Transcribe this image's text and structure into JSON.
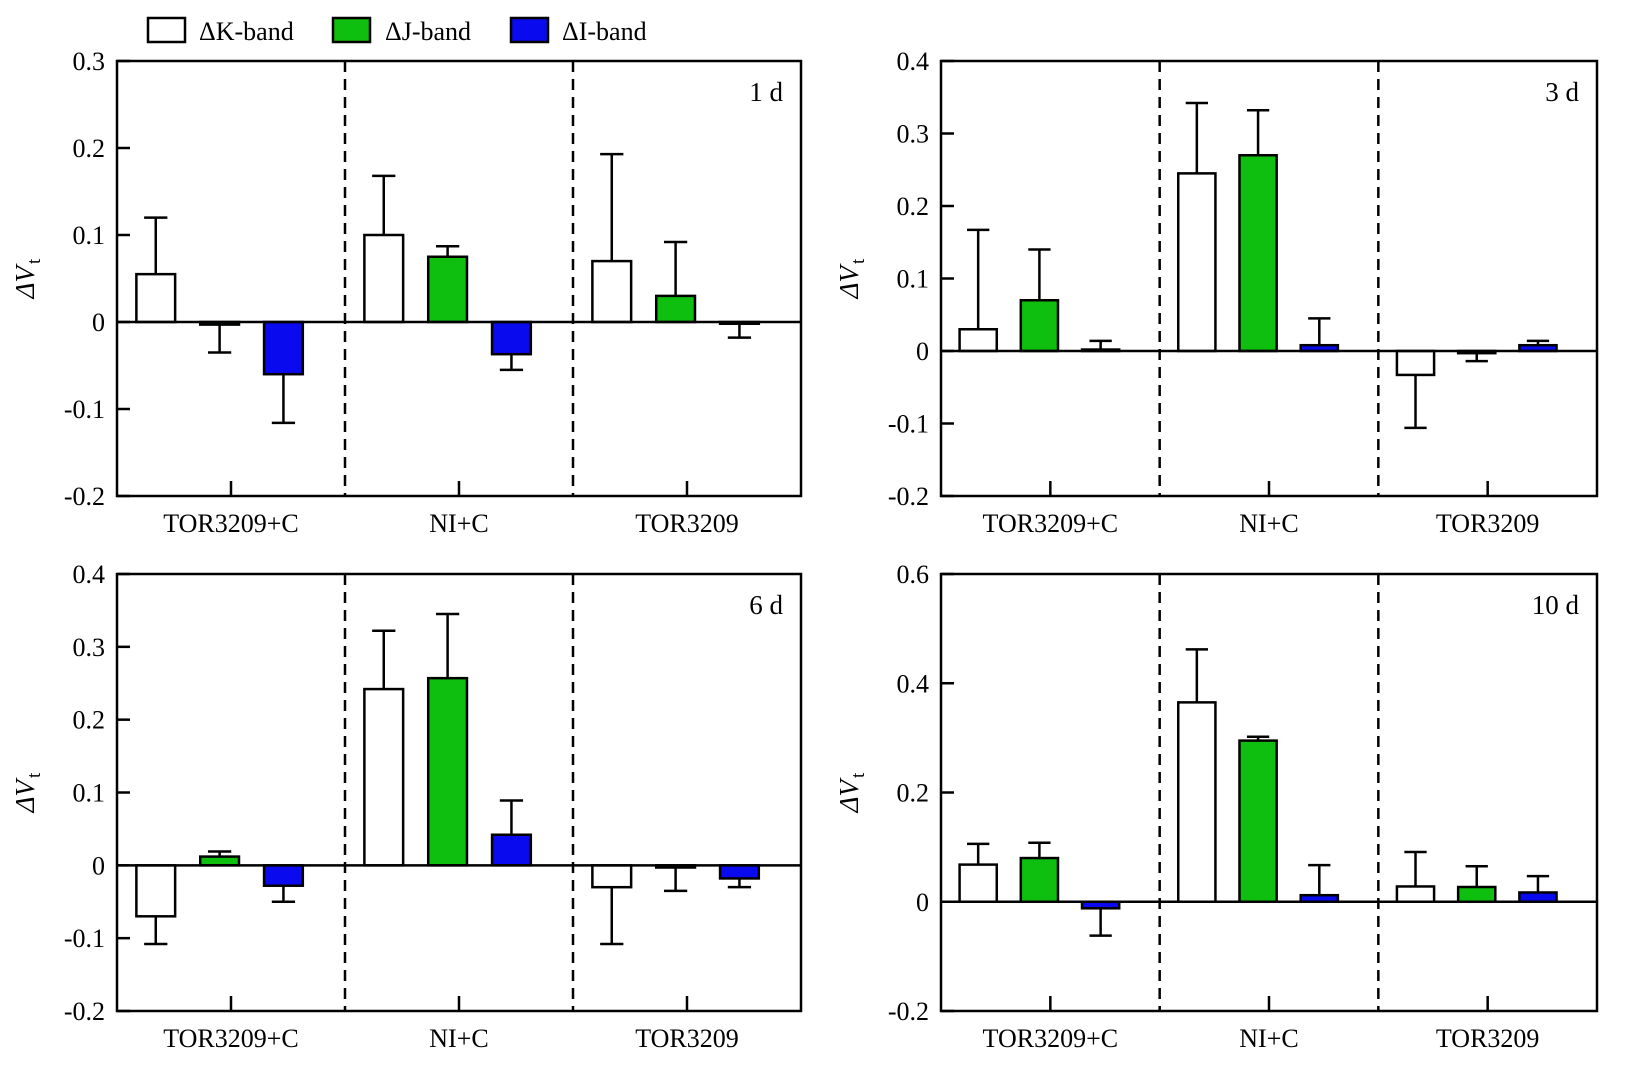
{
  "legend": {
    "items": [
      {
        "label": "ΔK-band",
        "color": "#ffffff"
      },
      {
        "label": "ΔJ-band",
        "color": "#0fbf0f"
      },
      {
        "label": "ΔI-band",
        "color": "#0a0aee"
      }
    ]
  },
  "chart_data": [
    {
      "type": "bar",
      "panel_label": "1 d",
      "ylabel_main": "ΔV",
      "ylabel_sub": "t",
      "categories": [
        "TOR3209+C",
        "NI+C",
        "TOR3209"
      ],
      "ylim": [
        -0.2,
        0.3
      ],
      "yticks": [
        -0.2,
        -0.1,
        0,
        0.1,
        0.2,
        0.3
      ],
      "ytick_labels": [
        "-0.2",
        "-0.1",
        "0",
        "0.1",
        "0.2",
        "0.3"
      ],
      "series": [
        {
          "values": [
            0.055,
            0.1,
            0.07
          ],
          "errors": [
            0.065,
            0.068,
            0.123
          ],
          "color": "#ffffff"
        },
        {
          "values": [
            -0.003,
            0.075,
            0.03
          ],
          "errors": [
            0.032,
            0.012,
            0.062
          ],
          "color": "#0fbf0f"
        },
        {
          "values": [
            -0.06,
            -0.037,
            -0.002
          ],
          "errors": [
            0.056,
            0.018,
            0.016
          ],
          "color": "#0a0aee"
        }
      ]
    },
    {
      "type": "bar",
      "panel_label": "3 d",
      "ylabel_main": "ΔV",
      "ylabel_sub": "t",
      "categories": [
        "TOR3209+C",
        "NI+C",
        "TOR3209"
      ],
      "ylim": [
        -0.2,
        0.4
      ],
      "yticks": [
        -0.2,
        -0.1,
        0,
        0.1,
        0.2,
        0.3,
        0.4
      ],
      "ytick_labels": [
        "-0.2",
        "-0.1",
        "0",
        "0.1",
        "0.2",
        "0.3",
        "0.4"
      ],
      "series": [
        {
          "values": [
            0.03,
            0.245,
            -0.033
          ],
          "errors": [
            0.137,
            0.097,
            0.073
          ],
          "color": "#ffffff"
        },
        {
          "values": [
            0.07,
            0.27,
            -0.003
          ],
          "errors": [
            0.07,
            0.062,
            0.011
          ],
          "color": "#0fbf0f"
        },
        {
          "values": [
            0.002,
            0.008,
            0.008
          ],
          "errors": [
            0.012,
            0.037,
            0.006
          ],
          "color": "#0a0aee"
        }
      ]
    },
    {
      "type": "bar",
      "panel_label": "6 d",
      "ylabel_main": "ΔV",
      "ylabel_sub": "t",
      "categories": [
        "TOR3209+C",
        "NI+C",
        "TOR3209"
      ],
      "ylim": [
        -0.2,
        0.4
      ],
      "yticks": [
        -0.2,
        -0.1,
        0,
        0.1,
        0.2,
        0.3,
        0.4
      ],
      "ytick_labels": [
        "-0.2",
        "-0.1",
        "0",
        "0.1",
        "0.2",
        "0.3",
        "0.4"
      ],
      "series": [
        {
          "values": [
            -0.07,
            0.242,
            -0.03
          ],
          "errors": [
            0.038,
            0.08,
            0.078
          ],
          "color": "#ffffff"
        },
        {
          "values": [
            0.012,
            0.257,
            -0.003
          ],
          "errors": [
            0.007,
            0.088,
            0.032
          ],
          "color": "#0fbf0f"
        },
        {
          "values": [
            -0.028,
            0.042,
            -0.018
          ],
          "errors": [
            0.022,
            0.047,
            0.012
          ],
          "color": "#0a0aee"
        }
      ]
    },
    {
      "type": "bar",
      "panel_label": "10 d",
      "ylabel_main": "ΔV",
      "ylabel_sub": "t",
      "categories": [
        "TOR3209+C",
        "NI+C",
        "TOR3209"
      ],
      "ylim": [
        -0.2,
        0.6
      ],
      "yticks": [
        -0.2,
        0,
        0.2,
        0.4,
        0.6
      ],
      "ytick_labels": [
        "-0.2",
        "0",
        "0.2",
        "0.4",
        "0.6"
      ],
      "series": [
        {
          "values": [
            0.068,
            0.365,
            0.028
          ],
          "errors": [
            0.038,
            0.097,
            0.063
          ],
          "color": "#ffffff"
        },
        {
          "values": [
            0.08,
            0.295,
            0.027
          ],
          "errors": [
            0.028,
            0.007,
            0.038
          ],
          "color": "#0fbf0f"
        },
        {
          "values": [
            -0.012,
            0.012,
            0.017
          ],
          "errors": [
            0.05,
            0.055,
            0.03
          ],
          "color": "#0a0aee"
        }
      ]
    }
  ]
}
